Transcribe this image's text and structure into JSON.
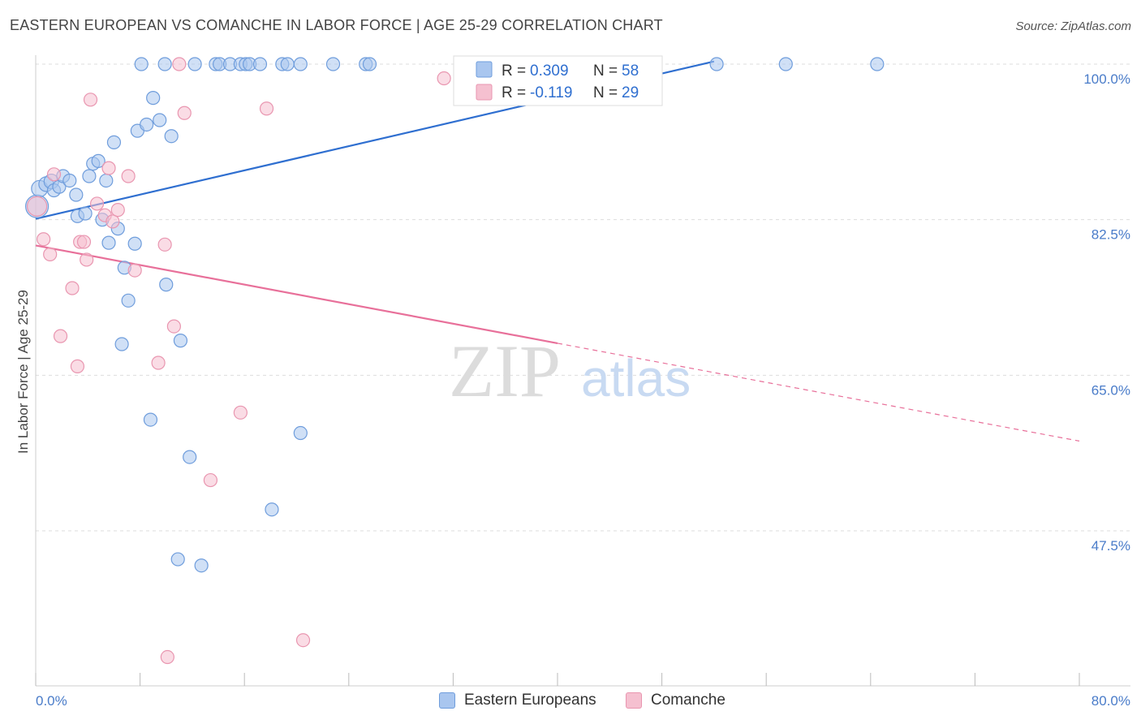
{
  "title": "EASTERN EUROPEAN VS COMANCHE IN LABOR FORCE | AGE 25-29 CORRELATION CHART",
  "source": "Source: ZipAtlas.com",
  "watermark": {
    "zip": "ZIP",
    "atlas": "atlas"
  },
  "legend": {
    "r_label": "R =",
    "n_label": "N =",
    "rows": [
      {
        "series": "Eastern Europeans",
        "r": "0.309",
        "n": "58"
      },
      {
        "series": "Comanche",
        "r": "-0.119",
        "n": "29"
      }
    ]
  },
  "bottom_legend": [
    "Eastern Europeans",
    "Comanche"
  ],
  "colors": {
    "blue_fill": "#a9c6ef",
    "blue_stroke": "#6f9ddc",
    "blue_line": "#2f6fd0",
    "pink_fill": "#f5c0d0",
    "pink_stroke": "#e996b0",
    "pink_line": "#e8709a",
    "tick_text": "#4a7cc9",
    "grid": "#dddddd"
  },
  "chart_data": {
    "type": "scatter",
    "title": "EASTERN EUROPEAN VS COMANCHE IN LABOR FORCE | AGE 25-29 CORRELATION CHART",
    "xlabel": "",
    "ylabel": "In Labor Force | Age 25-29",
    "xlim": [
      0,
      80
    ],
    "ylim": [
      31,
      102
    ],
    "x_tick_labels": [
      "0.0%",
      "80.0%"
    ],
    "y_ticks": [
      47.5,
      65.0,
      82.5,
      100.0
    ],
    "y_tick_labels": [
      "47.5%",
      "65.0%",
      "82.5%",
      "100.0%"
    ],
    "series": [
      {
        "name": "Eastern Europeans",
        "r": 0.309,
        "n": 58,
        "trend": {
          "x": [
            0,
            52
          ],
          "y": [
            82.6,
            100.3
          ]
        },
        "points": [
          [
            0.1,
            84.0,
            14
          ],
          [
            0.3,
            86.0,
            10
          ],
          [
            0.8,
            86.5,
            9
          ],
          [
            1.2,
            86.8,
            9
          ],
          [
            1.4,
            85.8,
            8
          ],
          [
            1.8,
            86.2,
            8
          ],
          [
            2.1,
            87.4,
            8
          ],
          [
            2.6,
            86.9,
            8
          ],
          [
            3.1,
            85.3,
            8
          ],
          [
            3.2,
            82.9,
            8
          ],
          [
            3.8,
            83.2,
            8
          ],
          [
            4.1,
            87.4,
            8
          ],
          [
            4.4,
            88.8,
            8
          ],
          [
            4.8,
            89.1,
            8
          ],
          [
            5.1,
            82.5,
            8
          ],
          [
            5.4,
            86.9,
            8
          ],
          [
            5.6,
            79.9,
            8
          ],
          [
            6.0,
            91.2,
            8
          ],
          [
            6.3,
            81.5,
            8
          ],
          [
            6.8,
            77.1,
            8
          ],
          [
            7.1,
            73.4,
            8
          ],
          [
            6.6,
            68.5,
            8
          ],
          [
            7.6,
            79.8,
            8
          ],
          [
            7.8,
            92.5,
            8
          ],
          [
            8.5,
            93.2,
            8
          ],
          [
            9.0,
            96.2,
            8
          ],
          [
            9.5,
            93.7,
            8
          ],
          [
            10.0,
            75.2,
            8
          ],
          [
            10.4,
            91.9,
            8
          ],
          [
            11.1,
            68.9,
            8
          ],
          [
            8.8,
            60.0,
            8
          ],
          [
            11.8,
            55.8,
            8
          ],
          [
            10.9,
            44.3,
            8
          ],
          [
            12.7,
            43.6,
            8
          ],
          [
            8.1,
            100.0,
            8
          ],
          [
            9.9,
            100.0,
            8
          ],
          [
            12.2,
            100.0,
            8
          ],
          [
            13.8,
            100.0,
            8
          ],
          [
            14.1,
            100.0,
            8
          ],
          [
            14.9,
            100.0,
            8
          ],
          [
            15.7,
            100.0,
            8
          ],
          [
            16.1,
            100.0,
            8
          ],
          [
            16.4,
            100.0,
            8
          ],
          [
            17.2,
            100.0,
            8
          ],
          [
            18.9,
            100.0,
            8
          ],
          [
            19.3,
            100.0,
            8
          ],
          [
            20.3,
            100.0,
            8
          ],
          [
            22.8,
            100.0,
            8
          ],
          [
            25.3,
            100.0,
            8
          ],
          [
            25.6,
            100.0,
            8
          ],
          [
            52.2,
            100.0,
            8
          ],
          [
            57.5,
            100.0,
            8
          ],
          [
            64.5,
            100.0,
            8
          ],
          [
            18.1,
            49.9,
            8
          ],
          [
            20.3,
            58.5,
            8
          ]
        ]
      },
      {
        "name": "Comanche",
        "r": -0.119,
        "n": 29,
        "trend": {
          "x": [
            0,
            40
          ],
          "y": [
            79.6,
            68.6
          ]
        },
        "trend_dashed": {
          "x": [
            40,
            80
          ],
          "y": [
            68.6,
            57.6
          ]
        },
        "points": [
          [
            0.1,
            84.0,
            12
          ],
          [
            0.6,
            80.3,
            8
          ],
          [
            1.1,
            78.6,
            8
          ],
          [
            1.4,
            87.6,
            8
          ],
          [
            1.9,
            69.4,
            8
          ],
          [
            2.8,
            74.8,
            8
          ],
          [
            3.2,
            66.0,
            8
          ],
          [
            3.4,
            80.0,
            8
          ],
          [
            3.7,
            80.0,
            8
          ],
          [
            3.9,
            78.0,
            8
          ],
          [
            4.2,
            96.0,
            8
          ],
          [
            4.7,
            84.3,
            8
          ],
          [
            5.3,
            83.0,
            8
          ],
          [
            5.6,
            88.3,
            8
          ],
          [
            5.9,
            82.3,
            8
          ],
          [
            6.3,
            83.6,
            8
          ],
          [
            7.1,
            87.4,
            8
          ],
          [
            7.6,
            76.8,
            8
          ],
          [
            9.4,
            66.4,
            8
          ],
          [
            9.9,
            79.7,
            8
          ],
          [
            10.1,
            33.3,
            8
          ],
          [
            10.6,
            70.5,
            8
          ],
          [
            11.0,
            100.0,
            8
          ],
          [
            11.4,
            94.5,
            8
          ],
          [
            13.4,
            53.2,
            8
          ],
          [
            15.7,
            60.8,
            8
          ],
          [
            17.7,
            95.0,
            8
          ],
          [
            20.5,
            35.2,
            8
          ],
          [
            31.3,
            98.4,
            8
          ]
        ]
      }
    ]
  }
}
